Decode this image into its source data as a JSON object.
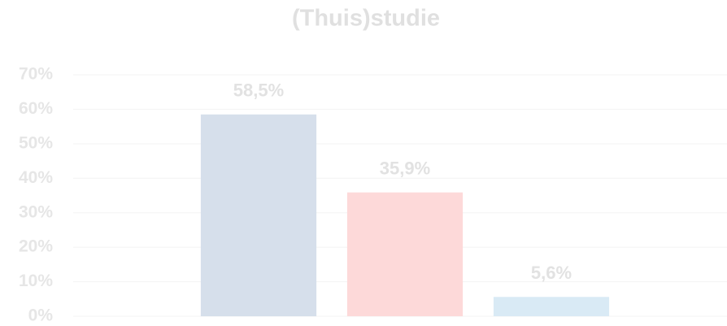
{
  "chart_data": {
    "type": "bar",
    "title": "(Thuis)studie",
    "categories": [
      null,
      null,
      null
    ],
    "values": [
      58.5,
      35.9,
      5.6
    ],
    "value_labels": [
      "58,5%",
      "35,9%",
      "5,6%"
    ],
    "colors": [
      "#d6dfeb",
      "#fdd9d9",
      "#d9eaf5"
    ],
    "ylim": [
      0,
      70
    ],
    "yticks": [
      {
        "value": 0,
        "label": "0%"
      },
      {
        "value": 10,
        "label": "10%"
      },
      {
        "value": 20,
        "label": "20%"
      },
      {
        "value": 30,
        "label": "30%"
      },
      {
        "value": 40,
        "label": "40%"
      },
      {
        "value": 50,
        "label": "50%"
      },
      {
        "value": 60,
        "label": "60%"
      },
      {
        "value": 70,
        "label": "70%"
      }
    ],
    "grid": true
  }
}
